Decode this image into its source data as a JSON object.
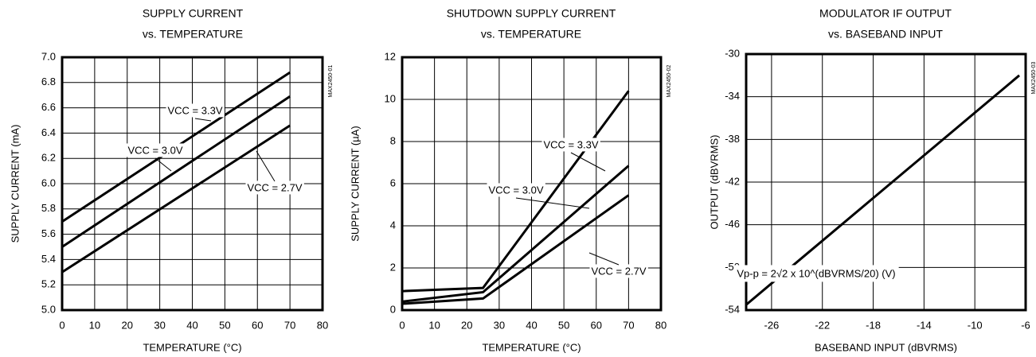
{
  "chart_data": [
    {
      "type": "line",
      "title": [
        "SUPPLY CURRENT",
        "vs. TEMPERATURE"
      ],
      "side_label": "MAX2450-01",
      "x_label": "TEMPERATURE (°C)",
      "y_label": "SUPPLY CURRENT (mA)",
      "xlim": [
        0,
        80
      ],
      "xticks": [
        0,
        10,
        20,
        30,
        40,
        50,
        60,
        70,
        80
      ],
      "ylim": [
        5,
        7
      ],
      "yticks": [
        {
          "value": 5,
          "label": "5.0"
        },
        5.2,
        5.4,
        5.6,
        5.8,
        {
          "value": 6,
          "label": "6.0"
        },
        6.2,
        6.4,
        6.6,
        6.8,
        {
          "value": 7,
          "label": "7.0"
        }
      ],
      "grid": true,
      "series": [
        {
          "name": "VCC = 3.3V",
          "color": "#000000",
          "x": [
            0,
            70
          ],
          "values": [
            5.7,
            6.88
          ]
        },
        {
          "name": "VCC = 3.0V",
          "color": "#000000",
          "x": [
            0,
            70
          ],
          "values": [
            5.5,
            6.69
          ]
        },
        {
          "name": "VCC = 2.7V",
          "color": "#000000",
          "x": [
            0,
            70
          ],
          "values": [
            5.3,
            6.46
          ]
        }
      ]
    },
    {
      "type": "line",
      "title": [
        "SHUTDOWN SUPPLY CURRENT",
        "vs. TEMPERATURE"
      ],
      "side_label": "MAX2450-02",
      "x_label": "TEMPERATURE (°C)",
      "y_label": "SUPPLY CURRENT (µA)",
      "xlim": [
        0,
        80
      ],
      "xticks": [
        0,
        10,
        20,
        30,
        40,
        50,
        60,
        70,
        80
      ],
      "ylim": [
        0,
        12
      ],
      "yticks": [
        0,
        2,
        4,
        6,
        8,
        10,
        12
      ],
      "grid": true,
      "series": [
        {
          "name": "VCC = 3.3V",
          "color": "#000000",
          "x": [
            0,
            25,
            70
          ],
          "values": [
            0.9,
            1.05,
            10.4
          ]
        },
        {
          "name": "VCC = 3.0V",
          "color": "#000000",
          "x": [
            0,
            25,
            70
          ],
          "values": [
            0.4,
            0.85,
            6.85
          ]
        },
        {
          "name": "VCC = 2.7V",
          "color": "#000000",
          "x": [
            0,
            25,
            70
          ],
          "values": [
            0.3,
            0.55,
            5.45
          ]
        }
      ]
    },
    {
      "type": "line",
      "title": [
        "MODULATOR IF OUTPUT",
        "vs. BASEBAND INPUT"
      ],
      "side_label": "MAX2450-03",
      "x_label": "BASEBAND INPUT (dBVRMS)",
      "y_label": "OUTPUT (dBVRMS)",
      "xlim": [
        -28,
        -6
      ],
      "xticks": [
        -26,
        -22,
        -18,
        -14,
        -10,
        -6
      ],
      "ylim": [
        -54,
        -30
      ],
      "yticks": [
        -54,
        -50,
        -46,
        -42,
        -38,
        -34,
        -30
      ],
      "grid": true,
      "annotation": "Vp-p = 2√2 x 10^(dBVRMS/20)  (V)",
      "series": [
        {
          "color": "#000000",
          "x": [
            -28,
            -6.5
          ],
          "values": [
            -53.5,
            -32
          ]
        }
      ]
    }
  ]
}
